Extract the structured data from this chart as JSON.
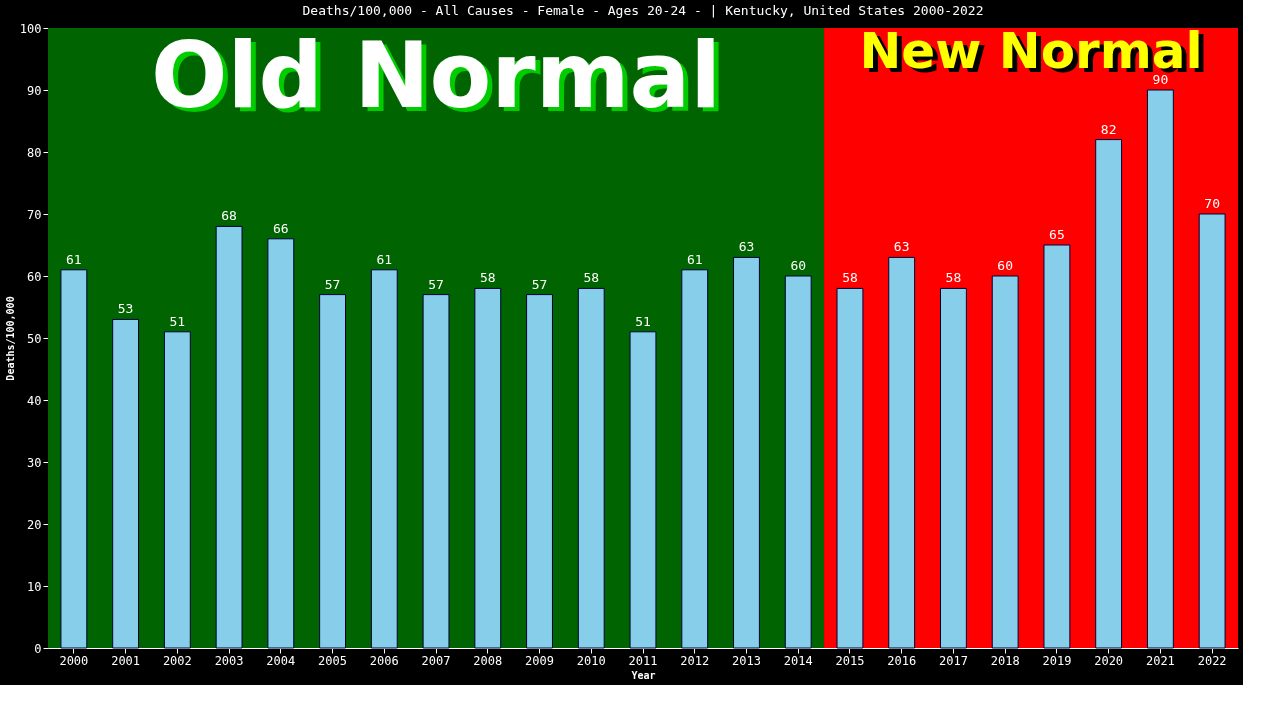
{
  "chart_data": {
    "type": "bar",
    "title": "Deaths/100,000 - All Causes - Female - Ages 20-24 -  | Kentucky, United States 2000-2022",
    "xlabel": "Year",
    "ylabel": "Deaths/100,000",
    "categories": [
      "2000",
      "2001",
      "2002",
      "2003",
      "2004",
      "2005",
      "2006",
      "2007",
      "2008",
      "2009",
      "2010",
      "2011",
      "2012",
      "2013",
      "2014",
      "2015",
      "2016",
      "2017",
      "2018",
      "2019",
      "2020",
      "2021",
      "2022"
    ],
    "values": [
      61,
      53,
      51,
      68,
      66,
      57,
      61,
      57,
      58,
      57,
      58,
      51,
      61,
      63,
      60,
      58,
      63,
      58,
      60,
      65,
      82,
      90,
      70
    ],
    "color": "#87ceeb",
    "ylim": [
      0,
      100
    ],
    "yticks": [
      0,
      10,
      20,
      30,
      40,
      50,
      60,
      70,
      80,
      90,
      100
    ],
    "data_labels": true,
    "grid": false,
    "bands": [
      {
        "axis": "x",
        "from": "2000",
        "to": "2014",
        "label": "Old Normal",
        "color": "#006400"
      },
      {
        "axis": "x",
        "from": "2015",
        "to": "2022",
        "label": "New Normal",
        "color": "#ff0000"
      }
    ]
  }
}
